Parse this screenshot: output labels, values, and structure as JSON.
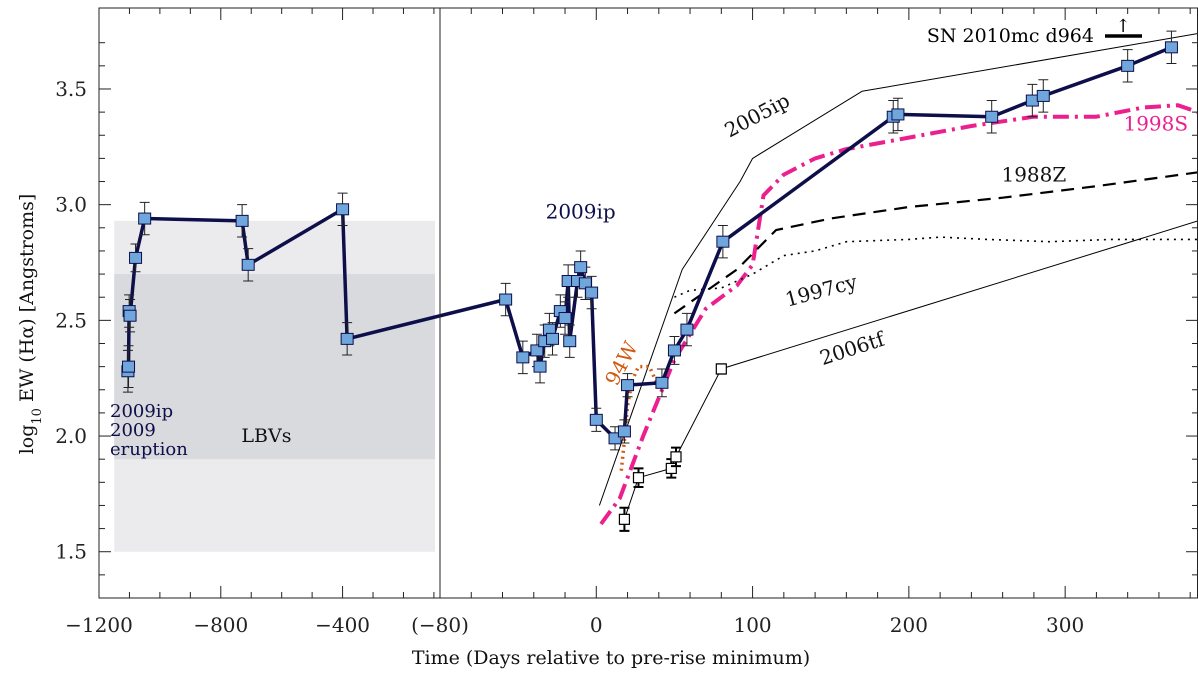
{
  "chart_data": {
    "type": "line",
    "xlabel": "Time (Days relative to pre-rise minimum)",
    "ylabel": "log10 EW (Hα) [Angstroms]",
    "ylabel_parts": {
      "pre": "log",
      "sub": "10",
      "post": " EW (Hα) [Angstroms]"
    },
    "ylim": [
      1.3,
      3.85
    ],
    "yticks": [
      1.5,
      2.0,
      2.5,
      3.0,
      3.5
    ],
    "ytick_labels": [
      "1.5",
      "2.0",
      "2.5",
      "3.0",
      "3.5"
    ],
    "left_panel": {
      "xlim": [
        -1200,
        -80
      ],
      "xticks": [
        -1200,
        -800,
        -400,
        -80
      ],
      "xtick_labels": [
        "−1200",
        "−800",
        "−400",
        "(−80)"
      ],
      "bands": [
        {
          "y0": 1.5,
          "y1": 2.93,
          "color": "#ebebee"
        },
        {
          "y0": 1.9,
          "y1": 2.7,
          "color": "#d9dadd"
        }
      ],
      "band_label": "LBVs",
      "eruption_label": [
        "2009ip",
        "2009",
        "eruption"
      ]
    },
    "right_panel": {
      "xlim": [
        -100,
        385
      ],
      "xticks": [
        0,
        100,
        200,
        300
      ],
      "xtick_labels": [
        "0",
        "100",
        "200",
        "300"
      ]
    },
    "series": [
      {
        "name": "2009ip",
        "color": "#0d0e4a",
        "marker_color": "#6fa7dd",
        "left_points": [
          {
            "x": -1105,
            "y": 2.28,
            "err": 0.09
          },
          {
            "x": -1103,
            "y": 2.3,
            "err": 0.09
          },
          {
            "x": -1101,
            "y": 2.54,
            "err": 0.07
          },
          {
            "x": -1098,
            "y": 2.52,
            "err": 0.07
          },
          {
            "x": -1080,
            "y": 2.77,
            "err": 0.06
          },
          {
            "x": -1050,
            "y": 2.94,
            "err": 0.07
          },
          {
            "x": -730,
            "y": 2.93,
            "err": 0.07
          },
          {
            "x": -710,
            "y": 2.74,
            "err": 0.07
          },
          {
            "x": -400,
            "y": 2.98,
            "err": 0.07
          },
          {
            "x": -385,
            "y": 2.42,
            "err": 0.07
          }
        ],
        "right_points": [
          {
            "x": -58,
            "y": 2.59,
            "err": 0.07
          },
          {
            "x": -47,
            "y": 2.34,
            "err": 0.07
          },
          {
            "x": -38,
            "y": 2.37,
            "err": 0.07
          },
          {
            "x": -36,
            "y": 2.3,
            "err": 0.07
          },
          {
            "x": -33,
            "y": 2.41,
            "err": 0.07
          },
          {
            "x": -30,
            "y": 2.46,
            "err": 0.07
          },
          {
            "x": -28,
            "y": 2.42,
            "err": 0.07
          },
          {
            "x": -23,
            "y": 2.54,
            "err": 0.07
          },
          {
            "x": -20,
            "y": 2.51,
            "err": 0.07
          },
          {
            "x": -18,
            "y": 2.67,
            "err": 0.07
          },
          {
            "x": -17,
            "y": 2.41,
            "err": 0.07
          },
          {
            "x": -12,
            "y": 2.67,
            "err": 0.07
          },
          {
            "x": -10,
            "y": 2.73,
            "err": 0.07
          },
          {
            "x": -7,
            "y": 2.66,
            "err": 0.07
          },
          {
            "x": -3,
            "y": 2.62,
            "err": 0.07
          },
          {
            "x": 0,
            "y": 2.07,
            "err": 0.05
          },
          {
            "x": 12,
            "y": 1.99,
            "err": 0.05
          },
          {
            "x": 18,
            "y": 2.02,
            "err": 0.05
          },
          {
            "x": 20,
            "y": 2.22,
            "err": 0.05
          },
          {
            "x": 42,
            "y": 2.23,
            "err": 0.06
          },
          {
            "x": 50,
            "y": 2.37,
            "err": 0.06
          },
          {
            "x": 58,
            "y": 2.46,
            "err": 0.07
          },
          {
            "x": 81,
            "y": 2.84,
            "err": 0.07
          },
          {
            "x": 190,
            "y": 3.38,
            "err": 0.07
          },
          {
            "x": 193,
            "y": 3.39,
            "err": 0.07
          },
          {
            "x": 253,
            "y": 3.38,
            "err": 0.07
          },
          {
            "x": 279,
            "y": 3.45,
            "err": 0.07
          },
          {
            "x": 286,
            "y": 3.47,
            "err": 0.07
          },
          {
            "x": 340,
            "y": 3.6,
            "err": 0.07
          },
          {
            "x": 368,
            "y": 3.68,
            "err": 0.07
          }
        ]
      },
      {
        "name": "2006tf",
        "color": "#000000",
        "open_points": [
          {
            "x": 18,
            "y": 1.64,
            "err": 0.05
          },
          {
            "x": 27,
            "y": 1.82,
            "err": 0.04
          },
          {
            "x": 48,
            "y": 1.86,
            "err": 0.04
          },
          {
            "x": 51,
            "y": 1.91,
            "err": 0.04
          },
          {
            "x": 80,
            "y": 2.29,
            "err": 0.02
          }
        ],
        "curve": [
          [
            18,
            1.64
          ],
          [
            27,
            1.82
          ],
          [
            48,
            1.86
          ],
          [
            51,
            1.91
          ],
          [
            80,
            2.29
          ],
          [
            385,
            2.93
          ]
        ]
      },
      {
        "name": "2005ip",
        "color": "#000000",
        "curve": [
          [
            2,
            1.7
          ],
          [
            55,
            2.72
          ],
          [
            92,
            3.1
          ],
          [
            100,
            3.2
          ],
          [
            170,
            3.49
          ],
          [
            385,
            3.74
          ]
        ]
      },
      {
        "name": "1998S",
        "color": "#ec1f8e",
        "curve": [
          [
            3,
            1.62
          ],
          [
            15,
            1.73
          ],
          [
            30,
            2.0
          ],
          [
            50,
            2.33
          ],
          [
            70,
            2.55
          ],
          [
            90,
            2.65
          ],
          [
            100,
            2.74
          ],
          [
            107,
            3.04
          ],
          [
            120,
            3.13
          ],
          [
            140,
            3.2
          ],
          [
            160,
            3.24
          ],
          [
            200,
            3.29
          ],
          [
            240,
            3.34
          ],
          [
            280,
            3.38
          ],
          [
            320,
            3.38
          ],
          [
            350,
            3.42
          ],
          [
            372,
            3.43
          ],
          [
            385,
            3.4
          ]
        ]
      },
      {
        "name": "1988Z",
        "color": "#000000",
        "curve": [
          [
            50,
            2.53
          ],
          [
            90,
            2.72
          ],
          [
            115,
            2.89
          ],
          [
            150,
            2.94
          ],
          [
            200,
            2.99
          ],
          [
            260,
            3.03
          ],
          [
            320,
            3.08
          ],
          [
            385,
            3.14
          ]
        ]
      },
      {
        "name": "1997cy",
        "color": "#000000",
        "curve": [
          [
            50,
            2.6
          ],
          [
            60,
            2.63
          ],
          [
            80,
            2.64
          ],
          [
            100,
            2.7
          ],
          [
            120,
            2.78
          ],
          [
            140,
            2.8
          ],
          [
            160,
            2.84
          ],
          [
            200,
            2.85
          ],
          [
            220,
            2.86
          ],
          [
            250,
            2.85
          ],
          [
            290,
            2.84
          ],
          [
            330,
            2.85
          ],
          [
            385,
            2.85
          ]
        ]
      },
      {
        "name": "94W",
        "color": "#d35a13",
        "curve": [
          [
            16,
            1.85
          ],
          [
            18,
            1.98
          ],
          [
            20,
            2.13
          ],
          [
            23,
            2.24
          ],
          [
            27,
            2.3
          ],
          [
            34,
            2.3
          ],
          [
            38,
            2.24
          ],
          [
            40,
            2.21
          ]
        ]
      }
    ],
    "annotations": [
      {
        "text": "2009ip",
        "x": -10,
        "y": 2.94,
        "color": "#0d0e4a"
      },
      {
        "text": "2005ip",
        "x": 105,
        "y": 3.36,
        "color": "#111111",
        "rotate": -28
      },
      {
        "text": "1998S",
        "x": 358,
        "y": 3.32,
        "color": "#ec1f8e"
      },
      {
        "text": "1988Z",
        "x": 280,
        "y": 3.1,
        "color": "#111111"
      },
      {
        "text": "1997cy",
        "x": 145,
        "y": 2.6,
        "color": "#111111",
        "rotate": -15
      },
      {
        "text": "2006tf",
        "x": 165,
        "y": 2.35,
        "color": "#111111",
        "rotate": -18
      },
      {
        "text": "94W",
        "x": 20,
        "y": 2.3,
        "color": "#d35a13",
        "rotate": -62
      }
    ],
    "corner_label": "SN 2010mc d964",
    "corner_marker_symbol": "↑"
  }
}
